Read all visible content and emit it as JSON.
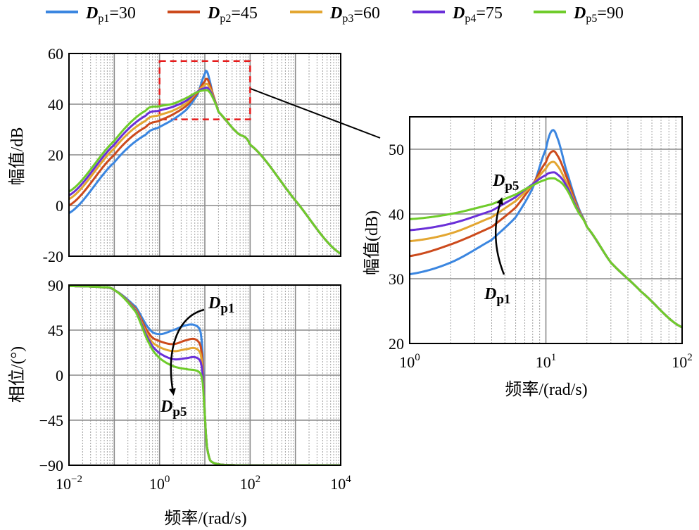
{
  "legend": [
    {
      "sym": "D",
      "sub": "p1",
      "val": "=30",
      "color": "#3b86e0"
    },
    {
      "sym": "D",
      "sub": "p2",
      "val": "=45",
      "color": "#cc4a1c"
    },
    {
      "sym": "D",
      "sub": "p3",
      "val": "=60",
      "color": "#e3a631"
    },
    {
      "sym": "D",
      "sub": "p4",
      "val": "=75",
      "color": "#6a2fd8"
    },
    {
      "sym": "D",
      "sub": "p5",
      "val": "=90",
      "color": "#6fcc2b"
    }
  ],
  "chart_data": [
    {
      "id": "magnitude",
      "type": "line",
      "ylabel": "幅值/dB",
      "xscale": "log",
      "xlim": [
        0.01,
        10000
      ],
      "ylim": [
        -20,
        60
      ],
      "yticks": [
        "60",
        "40",
        "20",
        "0",
        "-20"
      ],
      "grid": true,
      "zoom_box": {
        "x": [
          1,
          100
        ],
        "y": [
          34,
          57
        ]
      },
      "series": [
        {
          "name": "Dp1=30",
          "x": [
            0.01,
            0.1,
            0.5,
            1,
            2,
            4,
            7,
            10,
            11,
            12,
            15,
            20,
            50,
            100,
            1000,
            10000
          ],
          "values": [
            -3,
            17,
            28,
            31,
            34,
            38,
            44,
            52,
            53,
            51,
            44,
            37,
            29,
            24,
            2,
            -19
          ]
        },
        {
          "name": "Dp2=45",
          "x": [
            0.01,
            0.1,
            0.5,
            1,
            2,
            4,
            7,
            10,
            11,
            12,
            15,
            20,
            50,
            100,
            1000,
            10000
          ],
          "values": [
            0,
            20,
            31,
            33.5,
            36,
            39.5,
            44.5,
            49,
            50,
            49,
            44,
            37,
            29,
            24,
            2,
            -19
          ]
        },
        {
          "name": "Dp3=60",
          "x": [
            0.01,
            0.1,
            0.5,
            1,
            2,
            4,
            7,
            10,
            11,
            12,
            15,
            20,
            50,
            100,
            1000,
            10000
          ],
          "values": [
            2.5,
            22.5,
            33.5,
            35.7,
            37.5,
            40.5,
            45,
            47.5,
            48,
            47.3,
            43.5,
            37,
            29,
            24,
            2,
            -19
          ]
        },
        {
          "name": "Dp4=75",
          "x": [
            0.01,
            0.1,
            0.5,
            1,
            2,
            4,
            7,
            10,
            11,
            12,
            15,
            20,
            50,
            100,
            1000,
            10000
          ],
          "values": [
            4,
            24,
            35.5,
            37.5,
            39,
            41.5,
            45,
            46.3,
            46.5,
            46,
            43,
            37,
            29,
            24,
            2,
            -19
          ]
        },
        {
          "name": "Dp5=90",
          "x": [
            0.01,
            0.1,
            0.5,
            1,
            2,
            4,
            7,
            10,
            11,
            12,
            15,
            20,
            50,
            100,
            1000,
            10000
          ],
          "values": [
            5.5,
            25.5,
            37.5,
            39.2,
            40.2,
            42.5,
            44.8,
            45.5,
            45.5,
            45.2,
            42.5,
            37,
            29,
            24,
            2,
            -19
          ]
        }
      ]
    },
    {
      "id": "phase",
      "type": "line",
      "ylabel": "相位/(°)",
      "xlabel": "频率/(rad/s)",
      "xscale": "log",
      "xlim": [
        0.01,
        10000
      ],
      "xticks": [
        {
          "base": "10",
          "exp": "−2"
        },
        {
          "base": "10",
          "exp": "0"
        },
        {
          "base": "10",
          "exp": "2"
        },
        {
          "base": "10",
          "exp": "4"
        }
      ],
      "ylim": [
        -90,
        90
      ],
      "yticks": [
        "90",
        "45",
        "0",
        "−45",
        "−90"
      ],
      "grid": true,
      "annotations": [
        {
          "sym": "D",
          "sub": "p1"
        },
        {
          "sym": "D",
          "sub": "p5"
        }
      ],
      "series": [
        {
          "name": "Dp1=30",
          "x": [
            0.01,
            0.05,
            0.1,
            0.3,
            0.6,
            1,
            2,
            4,
            6,
            8,
            9,
            10,
            11,
            13,
            20,
            50,
            10000
          ],
          "values": [
            89,
            88,
            85,
            68,
            46,
            41,
            45,
            50,
            50,
            44,
            20,
            -40,
            -70,
            -85,
            -89,
            -90,
            -90
          ]
        },
        {
          "name": "Dp2=45",
          "x": [
            0.01,
            0.05,
            0.1,
            0.3,
            0.6,
            1,
            2,
            4,
            6,
            8,
            9,
            10,
            11,
            13,
            20,
            50,
            10000
          ],
          "values": [
            89,
            88,
            85,
            66,
            41,
            34,
            31,
            35,
            36,
            30,
            10,
            -40,
            -70,
            -85,
            -89,
            -90,
            -90
          ]
        },
        {
          "name": "Dp3=60",
          "x": [
            0.01,
            0.05,
            0.1,
            0.3,
            0.6,
            1,
            2,
            4,
            6,
            8,
            9,
            10,
            11,
            13,
            20,
            50,
            10000
          ],
          "values": [
            89,
            88,
            85,
            65,
            37,
            28,
            24,
            26,
            27,
            22,
            5,
            -40,
            -70,
            -85,
            -89,
            -90,
            -90
          ]
        },
        {
          "name": "Dp4=75",
          "x": [
            0.01,
            0.05,
            0.1,
            0.3,
            0.6,
            1,
            2,
            4,
            6,
            8,
            9,
            10,
            11,
            13,
            20,
            50,
            10000
          ],
          "values": [
            89,
            88,
            85,
            64,
            34,
            22,
            16,
            17,
            18,
            14,
            0,
            -40,
            -70,
            -85,
            -89,
            -90,
            -90
          ]
        },
        {
          "name": "Dp5=90",
          "x": [
            0.01,
            0.05,
            0.1,
            0.3,
            0.6,
            1,
            2,
            4,
            6,
            8,
            9,
            10,
            11,
            13,
            20,
            50,
            10000
          ],
          "values": [
            89,
            88,
            85,
            63,
            31,
            17,
            9,
            6,
            5,
            2,
            -8,
            -40,
            -70,
            -85,
            -89,
            -90,
            -90
          ]
        }
      ]
    },
    {
      "id": "zoom",
      "type": "line",
      "ylabel": "幅值(dB)",
      "xlabel": "频率/(rad/s)",
      "xscale": "log",
      "xlim": [
        1,
        100
      ],
      "xticks": [
        {
          "base": "10",
          "exp": "0"
        },
        {
          "base": "10",
          "exp": "1"
        },
        {
          "base": "10",
          "exp": "2"
        }
      ],
      "ylim": [
        20,
        55
      ],
      "yticks": [
        "50",
        "40",
        "30",
        "20"
      ],
      "grid": true,
      "annotations": [
        {
          "sym": "D",
          "sub": "p5"
        },
        {
          "sym": "D",
          "sub": "p1"
        }
      ],
      "series": [
        {
          "name": "Dp1=30",
          "x": [
            1,
            2,
            4,
            6,
            8,
            10,
            11,
            12,
            14,
            17,
            20,
            30,
            50,
            100
          ],
          "values": [
            30.7,
            32.5,
            36,
            39.5,
            44,
            50,
            52.8,
            52,
            47,
            41.5,
            38,
            32.5,
            28,
            22.5
          ]
        },
        {
          "name": "Dp2=45",
          "x": [
            1,
            2,
            4,
            6,
            8,
            10,
            11,
            12,
            14,
            17,
            20,
            30,
            50,
            100
          ],
          "values": [
            33.5,
            35.3,
            38,
            41,
            44.5,
            48,
            49.6,
            49.2,
            46,
            41.2,
            38,
            32.5,
            28,
            22.5
          ]
        },
        {
          "name": "Dp3=60",
          "x": [
            1,
            2,
            4,
            6,
            8,
            10,
            11,
            12,
            14,
            17,
            20,
            30,
            50,
            100
          ],
          "values": [
            35.8,
            37,
            39.5,
            42,
            44.5,
            47,
            48,
            47.6,
            45,
            41,
            38,
            32.5,
            28,
            22.5
          ]
        },
        {
          "name": "Dp4=75",
          "x": [
            1,
            2,
            4,
            6,
            8,
            10,
            11,
            12,
            14,
            17,
            20,
            30,
            50,
            100
          ],
          "values": [
            37.5,
            38.5,
            40.5,
            42.6,
            44.6,
            46,
            46.4,
            46.2,
            44.5,
            40.8,
            38,
            32.5,
            28,
            22.5
          ]
        },
        {
          "name": "Dp5=90",
          "x": [
            1,
            2,
            4,
            6,
            8,
            10,
            11,
            12,
            14,
            17,
            20,
            30,
            50,
            100
          ],
          "values": [
            39.2,
            40,
            41.5,
            43,
            44.4,
            45.3,
            45.5,
            45.3,
            44,
            40.6,
            38,
            32.5,
            28,
            22.5
          ]
        }
      ]
    }
  ]
}
